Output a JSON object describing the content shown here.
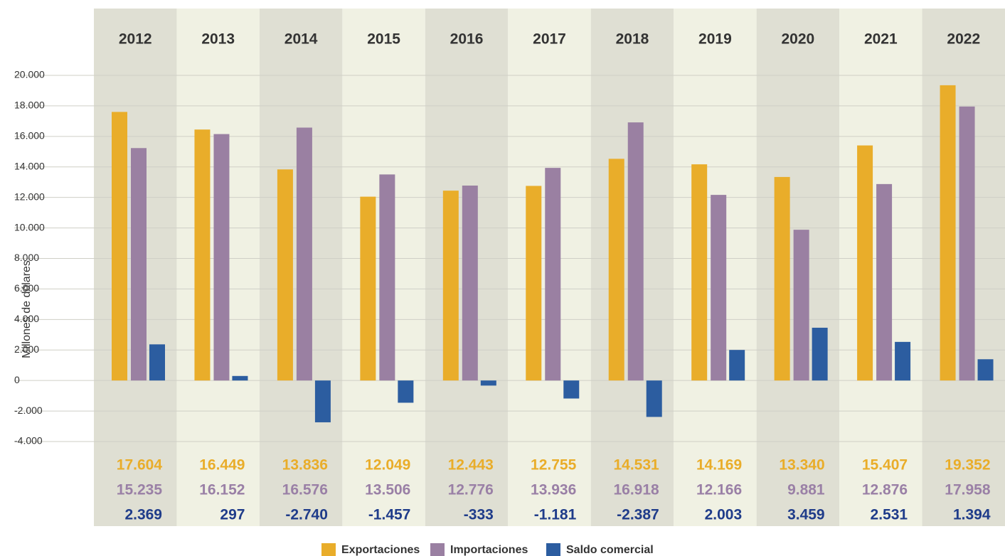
{
  "chart_data": {
    "type": "bar",
    "y_label": "Millones de dólares",
    "categories": [
      "2012",
      "2013",
      "2014",
      "2015",
      "2016",
      "2017",
      "2018",
      "2019",
      "2020",
      "2021",
      "2022"
    ],
    "series": [
      {
        "name": "Exportaciones",
        "color": "#e9ad2a",
        "label_color": "#e9ad2a",
        "values": [
          17604,
          16449,
          13836,
          12049,
          12443,
          12755,
          14531,
          14169,
          13340,
          15407,
          19352
        ],
        "value_labels": [
          "17.604",
          "16.449",
          "13.836",
          "12.049",
          "12.443",
          "12.755",
          "14.531",
          "14.169",
          "13.340",
          "15.407",
          "19.352"
        ]
      },
      {
        "name": "Importaciones",
        "color": "#9a80a2",
        "label_color": "#9a80a6",
        "values": [
          15235,
          16152,
          16576,
          13506,
          12776,
          13936,
          16918,
          12166,
          9881,
          12876,
          17958
        ],
        "value_labels": [
          "15.235",
          "16.152",
          "16.576",
          "13.506",
          "12.776",
          "13.936",
          "16.918",
          "12.166",
          "9.881",
          "12.876",
          "17.958"
        ]
      },
      {
        "name": "Saldo comercial",
        "color": "#2c5da0",
        "label_color": "#1f3c8a",
        "values": [
          2369,
          297,
          -2740,
          -1457,
          -333,
          -1181,
          -2387,
          2003,
          3459,
          2531,
          1394
        ],
        "value_labels": [
          "2.369",
          "297",
          "-2.740",
          "-1.457",
          "-333",
          "-1.181",
          "-2.387",
          "2.003",
          "3.459",
          "2.531",
          "1.394"
        ]
      }
    ],
    "ylim": [
      -4000,
      20000
    ],
    "yticks": [
      {
        "value": -4000,
        "label": "-4.000"
      },
      {
        "value": -2000,
        "label": "-2.000"
      },
      0,
      {
        "value": 2000,
        "label": "2.000"
      },
      {
        "value": 4000,
        "label": "4.000"
      },
      {
        "value": 6000,
        "label": "6.000"
      },
      {
        "value": 8000,
        "label": "8.000"
      },
      {
        "value": 10000,
        "label": "10.000"
      },
      {
        "value": 12000,
        "label": "12.000"
      },
      {
        "value": 14000,
        "label": "14.000"
      },
      {
        "value": 16000,
        "label": "16.000"
      },
      {
        "value": 18000,
        "label": "18.000"
      },
      {
        "value": 20000,
        "label": "20.000"
      }
    ],
    "grid": true
  }
}
